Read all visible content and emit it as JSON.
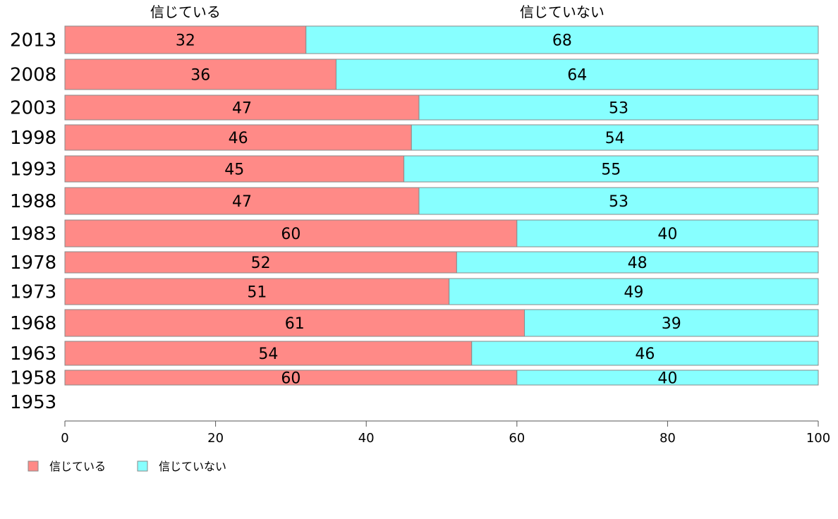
{
  "chart_data": {
    "type": "bar",
    "orientation": "horizontal",
    "stacked": true,
    "categories": [
      "2013",
      "2008",
      "2003",
      "1998",
      "1993",
      "1988",
      "1983",
      "1978",
      "1973",
      "1968",
      "1963",
      "1958",
      "1953"
    ],
    "series": [
      {
        "name": "信じている",
        "color": "#ff8a87",
        "values": [
          32,
          36,
          47,
          46,
          45,
          47,
          60,
          52,
          51,
          61,
          54,
          60,
          null
        ]
      },
      {
        "name": "信じていない",
        "color": "#87ffff",
        "values": [
          68,
          64,
          53,
          54,
          55,
          53,
          40,
          48,
          49,
          39,
          46,
          40,
          null
        ]
      }
    ],
    "xlim": [
      0,
      100
    ],
    "xticks": [
      0,
      20,
      40,
      60,
      80,
      100
    ],
    "legend_position": "bottom-left",
    "grid": false
  }
}
